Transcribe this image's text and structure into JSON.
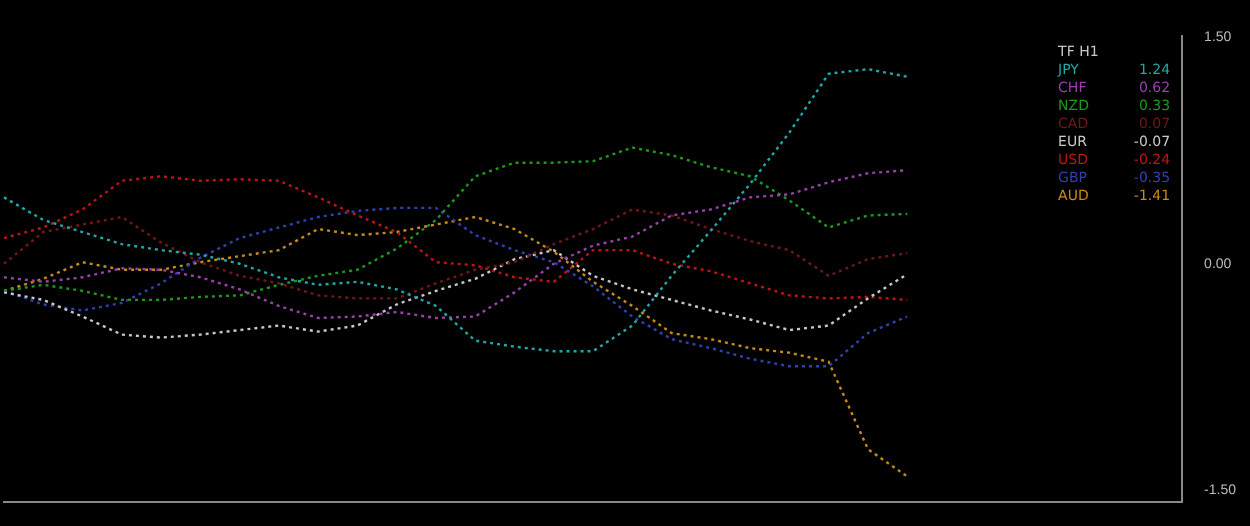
{
  "chart_data": {
    "type": "line",
    "legend_title": "TF H1",
    "legend": "top right",
    "line_style": "dotted",
    "marker": "none",
    "grid": false,
    "tick_labels": "y",
    "categories": [
      null,
      null,
      null,
      null,
      null,
      null,
      null,
      null,
      null,
      null,
      null,
      null,
      null,
      null,
      null,
      null,
      null,
      null,
      null,
      null,
      null,
      null,
      null,
      null,
      null,
      null,
      null,
      null,
      null,
      null,
      null
    ],
    "ylim": [
      -1.58,
      1.51
    ],
    "yticks": [
      {
        "value": 1.5,
        "label": "1.50"
      },
      {
        "value": 0,
        "label": "0.00"
      },
      {
        "value": -1.5,
        "label": "-1.50"
      }
    ],
    "series": [
      {
        "name": "JPY",
        "color": "#20a8a8",
        "values": [
          0.44,
          0.29,
          0.21,
          0.13,
          0.09,
          0.06,
          0,
          -0.09,
          -0.14,
          -0.12,
          -0.17,
          -0.28,
          -0.51,
          -0.55,
          -0.58,
          -0.58,
          -0.41,
          -0.08,
          0.22,
          0.53,
          0.87,
          1.26,
          1.29,
          1.24,
          null,
          null,
          null,
          null,
          null,
          null,
          null
        ]
      },
      {
        "name": "CHF",
        "color": "#9a40aa",
        "values": [
          -0.09,
          -0.12,
          -0.09,
          -0.03,
          -0.04,
          -0.09,
          -0.17,
          -0.28,
          -0.36,
          -0.35,
          -0.32,
          -0.36,
          -0.35,
          -0.19,
          0,
          0.12,
          0.18,
          0.32,
          0.36,
          0.44,
          0.46,
          0.54,
          0.6,
          0.62,
          null,
          null,
          null,
          null,
          null,
          null,
          null
        ]
      },
      {
        "name": "NZD",
        "color": "#1c9a1c",
        "values": [
          -0.18,
          -0.14,
          -0.18,
          -0.24,
          -0.24,
          -0.22,
          -0.21,
          -0.14,
          -0.08,
          -0.04,
          0.1,
          0.29,
          0.58,
          0.67,
          0.67,
          0.68,
          0.77,
          0.72,
          0.64,
          0.58,
          0.42,
          0.24,
          0.32,
          0.33,
          null,
          null,
          null,
          null,
          null,
          null,
          null
        ]
      },
      {
        "name": "CAD",
        "color": "#701818",
        "values": [
          0,
          0.21,
          0.26,
          0.31,
          0.14,
          0.01,
          -0.08,
          -0.13,
          -0.21,
          -0.23,
          -0.23,
          -0.13,
          -0.04,
          0.01,
          0.13,
          0.23,
          0.36,
          0.32,
          0.23,
          0.15,
          0.09,
          -0.08,
          0.03,
          0.07,
          null,
          null,
          null,
          null,
          null,
          null,
          null
        ]
      },
      {
        "name": "EUR",
        "color": "#c8c8c8",
        "values": [
          -0.19,
          -0.24,
          -0.35,
          -0.47,
          -0.49,
          -0.47,
          -0.44,
          -0.41,
          -0.45,
          -0.41,
          -0.27,
          -0.18,
          -0.1,
          0.03,
          0.09,
          -0.08,
          -0.17,
          -0.24,
          -0.31,
          -0.37,
          -0.44,
          -0.41,
          -0.23,
          -0.07,
          null,
          null,
          null,
          null,
          null,
          null,
          null
        ]
      },
      {
        "name": "USD",
        "color": "#c01414",
        "values": [
          0.17,
          0.24,
          0.36,
          0.55,
          0.58,
          0.55,
          0.56,
          0.55,
          0.44,
          0.32,
          0.21,
          0.01,
          -0.01,
          -0.09,
          -0.12,
          0.09,
          0.09,
          0,
          -0.05,
          -0.13,
          -0.21,
          -0.23,
          -0.22,
          -0.24,
          null,
          null,
          null,
          null,
          null,
          null,
          null
        ]
      },
      {
        "name": "GBP",
        "color": "#3040b0",
        "values": [
          -0.18,
          -0.27,
          -0.31,
          -0.26,
          -0.13,
          0.04,
          0.17,
          0.24,
          0.31,
          0.35,
          0.37,
          0.37,
          0.19,
          0.09,
          0.01,
          -0.15,
          -0.35,
          -0.5,
          -0.56,
          -0.63,
          -0.68,
          -0.68,
          -0.46,
          -0.35,
          null,
          null,
          null,
          null,
          null,
          null,
          null
        ]
      },
      {
        "name": "AUD",
        "color": "#c88a18",
        "values": [
          -0.18,
          -0.1,
          0.01,
          -0.04,
          -0.04,
          0.01,
          0.05,
          0.09,
          0.23,
          0.19,
          0.21,
          0.26,
          0.31,
          0.23,
          0.08,
          -0.12,
          -0.28,
          -0.46,
          -0.5,
          -0.56,
          -0.59,
          -0.65,
          -1.23,
          -1.41,
          null,
          null,
          null,
          null,
          null,
          null,
          null
        ]
      }
    ],
    "annotations": [
      "1.24",
      "0.62",
      "0.33",
      "0.07",
      "-0.07",
      "-0.24",
      "-0.35",
      "-1.41"
    ]
  }
}
